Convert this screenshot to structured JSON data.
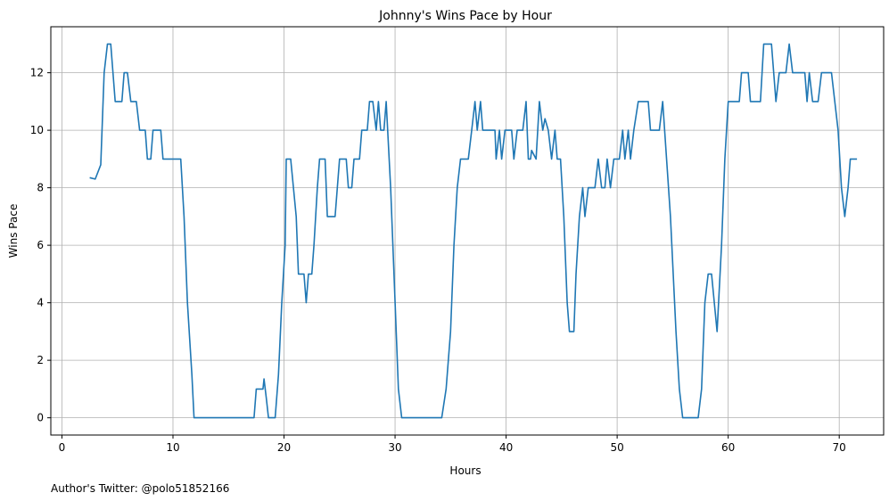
{
  "chart_data": {
    "type": "line",
    "title": "Johnny's Wins Pace by Hour",
    "xlabel": "Hours",
    "ylabel": "Wins Pace",
    "xlim": [
      -1,
      74
    ],
    "ylim": [
      -0.6,
      13.6
    ],
    "x_ticks": [
      0,
      10,
      20,
      30,
      40,
      50,
      60,
      70
    ],
    "y_ticks": [
      0,
      2,
      4,
      6,
      8,
      10,
      12
    ],
    "grid": true,
    "line_color": "#1f77b4",
    "series": [
      {
        "points": [
          [
            2.5,
            8.35
          ],
          [
            3.0,
            8.3
          ],
          [
            3.5,
            8.8
          ],
          [
            3.8,
            12.0
          ],
          [
            4.1,
            13.0
          ],
          [
            4.4,
            13.0
          ],
          [
            4.8,
            11.0
          ],
          [
            5.4,
            11.0
          ],
          [
            5.6,
            12.0
          ],
          [
            5.9,
            12.0
          ],
          [
            6.2,
            11.0
          ],
          [
            6.7,
            11.0
          ],
          [
            7.0,
            10.0
          ],
          [
            7.5,
            10.0
          ],
          [
            7.7,
            9.0
          ],
          [
            8.0,
            9.0
          ],
          [
            8.2,
            10.0
          ],
          [
            8.9,
            10.0
          ],
          [
            9.1,
            9.0
          ],
          [
            10.7,
            9.0
          ],
          [
            11.0,
            7.0
          ],
          [
            11.3,
            4.0
          ],
          [
            11.7,
            1.5
          ],
          [
            11.9,
            0.0
          ],
          [
            17.3,
            0.0
          ],
          [
            17.5,
            1.0
          ],
          [
            18.1,
            1.0
          ],
          [
            18.2,
            1.35
          ],
          [
            18.4,
            0.7
          ],
          [
            18.6,
            0.0
          ],
          [
            19.2,
            0.0
          ],
          [
            19.5,
            1.5
          ],
          [
            19.8,
            4.0
          ],
          [
            20.1,
            6.0
          ],
          [
            20.2,
            9.0
          ],
          [
            20.6,
            9.0
          ],
          [
            21.1,
            7.0
          ],
          [
            21.3,
            5.0
          ],
          [
            21.8,
            5.0
          ],
          [
            22.0,
            4.0
          ],
          [
            22.2,
            5.0
          ],
          [
            22.5,
            5.0
          ],
          [
            22.7,
            6.0
          ],
          [
            23.0,
            8.0
          ],
          [
            23.2,
            9.0
          ],
          [
            23.7,
            9.0
          ],
          [
            23.9,
            7.0
          ],
          [
            24.6,
            7.0
          ],
          [
            25.0,
            9.0
          ],
          [
            25.6,
            9.0
          ],
          [
            25.8,
            8.0
          ],
          [
            26.1,
            8.0
          ],
          [
            26.3,
            9.0
          ],
          [
            26.8,
            9.0
          ],
          [
            27.0,
            10.0
          ],
          [
            27.5,
            10.0
          ],
          [
            27.7,
            11.0
          ],
          [
            28.0,
            11.0
          ],
          [
            28.3,
            10.0
          ],
          [
            28.5,
            11.0
          ],
          [
            28.7,
            10.0
          ],
          [
            29.0,
            10.0
          ],
          [
            29.2,
            11.0
          ],
          [
            29.6,
            8.0
          ],
          [
            30.0,
            4.0
          ],
          [
            30.3,
            1.0
          ],
          [
            30.6,
            0.0
          ],
          [
            34.2,
            0.0
          ],
          [
            34.6,
            1.0
          ],
          [
            35.0,
            3.0
          ],
          [
            35.3,
            6.0
          ],
          [
            35.6,
            8.0
          ],
          [
            35.9,
            9.0
          ],
          [
            36.6,
            9.0
          ],
          [
            36.9,
            10.0
          ],
          [
            37.2,
            11.0
          ],
          [
            37.4,
            10.0
          ],
          [
            37.7,
            11.0
          ],
          [
            37.9,
            10.0
          ],
          [
            38.6,
            10.0
          ],
          [
            39.0,
            10.0
          ],
          [
            39.1,
            9.0
          ],
          [
            39.4,
            10.0
          ],
          [
            39.6,
            9.0
          ],
          [
            39.9,
            10.0
          ],
          [
            40.5,
            10.0
          ],
          [
            40.7,
            9.0
          ],
          [
            41.0,
            10.0
          ],
          [
            41.5,
            10.0
          ],
          [
            41.8,
            11.0
          ],
          [
            42.0,
            9.0
          ],
          [
            42.2,
            9.0
          ],
          [
            42.3,
            9.3
          ],
          [
            42.7,
            9.0
          ],
          [
            43.0,
            11.0
          ],
          [
            43.3,
            10.0
          ],
          [
            43.5,
            10.4
          ],
          [
            43.8,
            10.0
          ],
          [
            44.1,
            9.0
          ],
          [
            44.4,
            10.0
          ],
          [
            44.6,
            9.0
          ],
          [
            44.9,
            9.0
          ],
          [
            45.2,
            7.0
          ],
          [
            45.5,
            4.0
          ],
          [
            45.7,
            3.0
          ],
          [
            46.1,
            3.0
          ],
          [
            46.3,
            5.0
          ],
          [
            46.6,
            7.0
          ],
          [
            46.9,
            8.0
          ],
          [
            47.1,
            7.0
          ],
          [
            47.4,
            8.0
          ],
          [
            48.0,
            8.0
          ],
          [
            48.3,
            9.0
          ],
          [
            48.6,
            8.0
          ],
          [
            48.9,
            8.0
          ],
          [
            49.1,
            9.0
          ],
          [
            49.4,
            8.0
          ],
          [
            49.7,
            9.0
          ],
          [
            50.2,
            9.0
          ],
          [
            50.5,
            10.0
          ],
          [
            50.7,
            9.0
          ],
          [
            51.0,
            10.0
          ],
          [
            51.2,
            9.0
          ],
          [
            51.5,
            10.0
          ],
          [
            51.9,
            11.0
          ],
          [
            52.8,
            11.0
          ],
          [
            53.0,
            10.0
          ],
          [
            53.8,
            10.0
          ],
          [
            54.1,
            11.0
          ],
          [
            54.8,
            7.0
          ],
          [
            55.3,
            3.0
          ],
          [
            55.6,
            1.0
          ],
          [
            55.9,
            0.0
          ],
          [
            57.3,
            0.0
          ],
          [
            57.6,
            1.0
          ],
          [
            57.9,
            4.0
          ],
          [
            58.2,
            5.0
          ],
          [
            58.5,
            5.0
          ],
          [
            59.0,
            3.0
          ],
          [
            59.4,
            6.0
          ],
          [
            59.7,
            9.0
          ],
          [
            60.0,
            11.0
          ],
          [
            61.0,
            11.0
          ],
          [
            61.2,
            12.0
          ],
          [
            61.8,
            12.0
          ],
          [
            62.0,
            11.0
          ],
          [
            62.9,
            11.0
          ],
          [
            63.2,
            13.0
          ],
          [
            63.9,
            13.0
          ],
          [
            64.3,
            11.0
          ],
          [
            64.6,
            12.0
          ],
          [
            65.2,
            12.0
          ],
          [
            65.5,
            13.0
          ],
          [
            65.8,
            12.0
          ],
          [
            66.9,
            12.0
          ],
          [
            67.1,
            11.0
          ],
          [
            67.3,
            12.0
          ],
          [
            67.6,
            11.0
          ],
          [
            68.1,
            11.0
          ],
          [
            68.4,
            12.0
          ],
          [
            69.0,
            12.0
          ],
          [
            69.3,
            12.0
          ],
          [
            69.6,
            11.0
          ],
          [
            69.9,
            10.0
          ],
          [
            70.2,
            8.0
          ],
          [
            70.5,
            7.0
          ],
          [
            70.8,
            8.0
          ],
          [
            71.0,
            9.0
          ],
          [
            71.6,
            9.0
          ]
        ]
      }
    ]
  },
  "footer": {
    "credit": "Author's Twitter: @polo51852166"
  }
}
